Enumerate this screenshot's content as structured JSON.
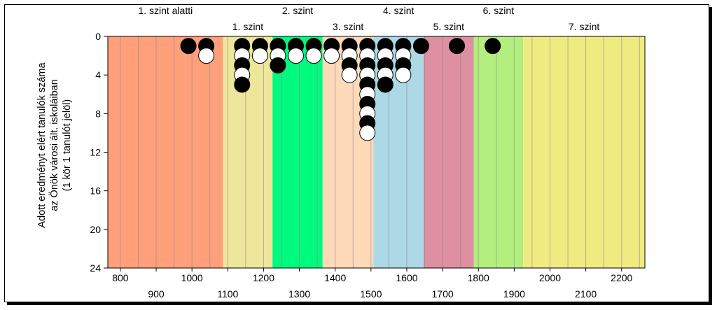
{
  "chart_data": {
    "type": "scatter",
    "title": "",
    "ylabel_lines": [
      "Adott eredményt elért tanulók száma",
      "az Önök városi ált. iskoláiban",
      "(1 kör 1 tanulót jelöl)"
    ],
    "xlim": [
      765,
      2265
    ],
    "ylim": [
      0,
      24
    ],
    "y_inverted": true,
    "y_ticks": [
      "0",
      "4",
      "8",
      "12",
      "16",
      "20",
      "24"
    ],
    "x_ticks": [
      {
        "value": 800,
        "label": "800"
      },
      {
        "value": 900,
        "label": "900"
      },
      {
        "value": 1000,
        "label": "1000"
      },
      {
        "value": 1100,
        "label": "1100"
      },
      {
        "value": 1200,
        "label": "1200"
      },
      {
        "value": 1300,
        "label": "1300"
      },
      {
        "value": 1400,
        "label": "1400"
      },
      {
        "value": 1500,
        "label": "1500"
      },
      {
        "value": 1600,
        "label": "1600"
      },
      {
        "value": 1700,
        "label": "1700"
      },
      {
        "value": 1800,
        "label": "1800"
      },
      {
        "value": 1900,
        "label": "1900"
      },
      {
        "value": 2000,
        "label": "2000"
      },
      {
        "value": 2100,
        "label": "2100"
      },
      {
        "value": 2200,
        "label": "2200"
      }
    ],
    "gridlines_x": [
      800,
      850,
      900,
      950,
      1000,
      1050,
      1100,
      1150,
      1200,
      1250,
      1300,
      1350,
      1400,
      1450,
      1500,
      1550,
      1600,
      1650,
      1700,
      1750,
      1800,
      1850,
      1900,
      1950,
      2000,
      2050,
      2100,
      2150,
      2200,
      2250
    ],
    "bands": [
      {
        "name": "1. szint alatti",
        "from": 765,
        "to": 1087,
        "color": "#FFA07A"
      },
      {
        "name": "1. szint",
        "from": 1087,
        "to": 1225,
        "color": "#EEE69A"
      },
      {
        "name": "2. szint",
        "from": 1225,
        "to": 1365,
        "color": "#00FA7F"
      },
      {
        "name": "3. szint",
        "from": 1365,
        "to": 1507,
        "color": "#FFDAB9"
      },
      {
        "name": "4. szint",
        "from": 1507,
        "to": 1647,
        "color": "#ADD8E6"
      },
      {
        "name": "5. szint",
        "from": 1647,
        "to": 1787,
        "color": "#DE8FA1"
      },
      {
        "name": "6. szint",
        "from": 1787,
        "to": 1925,
        "color": "#B3EF7F"
      },
      {
        "name": "7. szint",
        "from": 1925,
        "to": 2265,
        "color": "#EFEB80"
      }
    ],
    "band_labels_top": [
      "1. szint alatti",
      "2. szint",
      "4. szint",
      "6. szint"
    ],
    "band_labels_bottom": [
      "1. szint",
      "3. szint",
      "5. szint",
      "7. szint"
    ],
    "columns": [
      {
        "x": 990,
        "markers": [
          "black"
        ]
      },
      {
        "x": 1040,
        "markers": [
          "black",
          "white"
        ]
      },
      {
        "x": 1140,
        "markers": [
          "black",
          "white",
          "black",
          "white",
          "black"
        ]
      },
      {
        "x": 1190,
        "markers": [
          "black",
          "white"
        ]
      },
      {
        "x": 1240,
        "markers": [
          "black",
          "white",
          "black"
        ]
      },
      {
        "x": 1290,
        "markers": [
          "black",
          "white"
        ]
      },
      {
        "x": 1340,
        "markers": [
          "black",
          "white"
        ]
      },
      {
        "x": 1390,
        "markers": [
          "black",
          "white"
        ]
      },
      {
        "x": 1440,
        "markers": [
          "black",
          "white",
          "black",
          "white"
        ]
      },
      {
        "x": 1490,
        "markers": [
          "black",
          "white",
          "black",
          "white",
          "black",
          "white",
          "black",
          "white",
          "black",
          "white"
        ]
      },
      {
        "x": 1540,
        "markers": [
          "black",
          "white",
          "black",
          "white",
          "black"
        ]
      },
      {
        "x": 1590,
        "markers": [
          "black",
          "white",
          "black",
          "white"
        ]
      },
      {
        "x": 1640,
        "markers": [
          "black"
        ]
      },
      {
        "x": 1740,
        "markers": [
          "black"
        ]
      },
      {
        "x": 1840,
        "markers": [
          "black"
        ]
      }
    ]
  }
}
